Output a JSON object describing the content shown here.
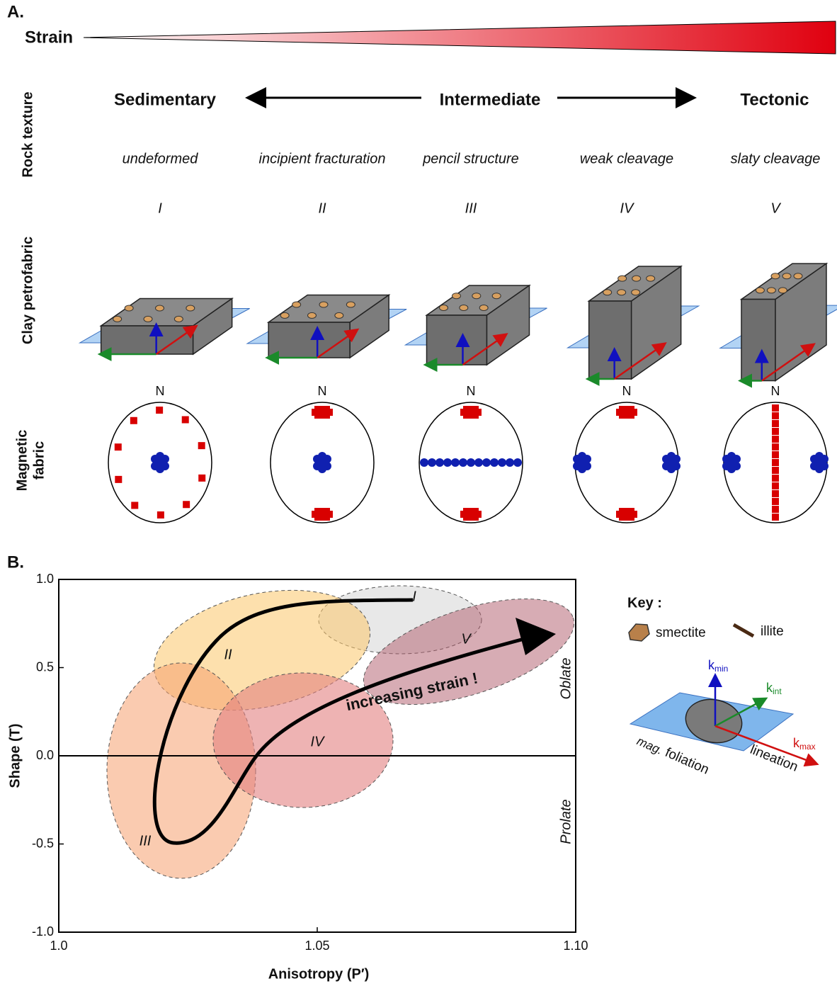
{
  "panel_a": {
    "label": "A.",
    "strain": "Strain",
    "row_labels": {
      "rock_texture": "Rock texture",
      "clay_petrofabric": "Clay petrofabric",
      "magnetic_fabric": [
        "Magnetic",
        "fabric"
      ]
    },
    "texture_classes": [
      "Sedimentary",
      "Intermediate",
      "Tectonic"
    ],
    "columns": [
      {
        "numeral": "I",
        "texture": "undeformed"
      },
      {
        "numeral": "II",
        "texture": "incipient fracturation"
      },
      {
        "numeral": "III",
        "texture": "pencil structure"
      },
      {
        "numeral": "IV",
        "texture": "weak cleavage"
      },
      {
        "numeral": "V",
        "texture": "slaty cleavage"
      }
    ],
    "north": "N"
  },
  "panel_b": {
    "label": "B.",
    "x_label": "Anisotropy (P′)",
    "y_label": "Shape (T)",
    "xlim": [
      1.0,
      1.1
    ],
    "ylim": [
      -1.0,
      1.0
    ],
    "xticks": [
      {
        "value": 1.0,
        "label": "1.0"
      },
      1.05,
      {
        "value": 1.1,
        "label": "1.10"
      }
    ],
    "yticks": [
      {
        "value": 1.0,
        "label": "1.0"
      },
      0.5,
      {
        "value": 0.0,
        "label": "0.0"
      },
      -0.5,
      {
        "value": -1.0,
        "label": "-1.0"
      }
    ],
    "region_labels": [
      "I",
      "II",
      "III",
      "IV",
      "V"
    ],
    "arrow_label": "increasing strain !",
    "upper_label": "Oblate",
    "lower_label": "Prolate",
    "key": {
      "title": "Key :",
      "smectite": "smectite",
      "illite": "illite",
      "k_min": {
        "k": "k",
        "sub": "min"
      },
      "k_int": {
        "k": "k",
        "sub": "int"
      },
      "k_max": {
        "k": "k",
        "sub": "max"
      },
      "mag": "mag.",
      "foliation": "foliation",
      "lineation": "lineation"
    }
  }
}
